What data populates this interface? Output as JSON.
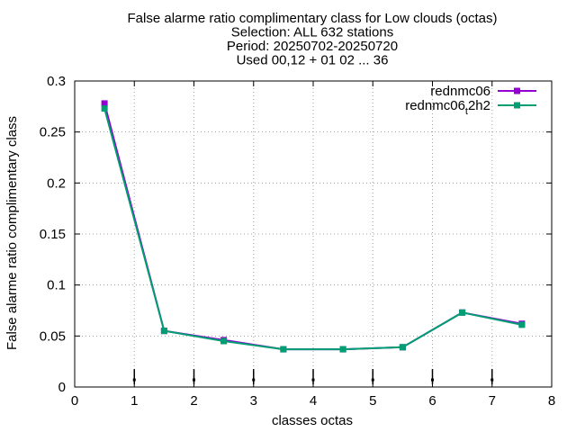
{
  "chart_data": {
    "type": "line",
    "title_lines": [
      "False alarme ratio complimentary class  for Low clouds (octas)",
      "Selection: ALL    632 stations",
      "Period: 20250702-20250720",
      "Used 00,12 + 01 02 ... 36"
    ],
    "xlabel": "classes octas",
    "ylabel": "False alarme ratio complimentary class",
    "xlim": [
      0,
      8
    ],
    "ylim": [
      0,
      0.3
    ],
    "xticks": [
      0,
      1,
      2,
      3,
      4,
      5,
      6,
      7,
      8
    ],
    "xtick_labels": [
      "0",
      "1",
      "2",
      "3",
      "4",
      "5",
      "6",
      "7",
      "8"
    ],
    "yticks": [
      0,
      0.05,
      0.1,
      0.15,
      0.2,
      0.25,
      0.3
    ],
    "ytick_labels": [
      "0",
      "0.05",
      "0.1",
      "0.15",
      "0.2",
      "0.25",
      "0.3"
    ],
    "grid": true,
    "legend_position": "top-right",
    "x": [
      0.5,
      1.5,
      2.5,
      3.5,
      4.5,
      5.5,
      6.5,
      7.5
    ],
    "series": [
      {
        "name": "rednmc06",
        "color": "#9400d3",
        "values": [
          0.278,
          0.055,
          0.046,
          0.037,
          0.037,
          0.039,
          0.073,
          0.062
        ]
      },
      {
        "name": "rednmc06_t2h2",
        "legend_main": "rednmc06",
        "legend_sub": "t",
        "legend_tail": "2h2",
        "color": "#009e73",
        "values": [
          0.273,
          0.055,
          0.045,
          0.037,
          0.037,
          0.039,
          0.073,
          0.061
        ]
      }
    ],
    "error_bar_x": [
      1,
      2,
      3,
      4,
      5,
      6,
      7
    ],
    "error_bar_y": 0.007
  }
}
